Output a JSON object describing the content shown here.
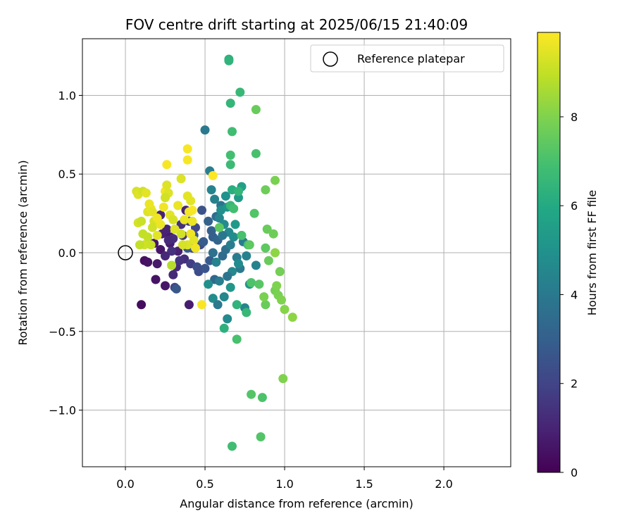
{
  "chart_data": {
    "type": "scatter",
    "title": "FOV centre drift starting at 2025/06/15 21:40:09",
    "xlabel": "Angular distance from reference (arcmin)",
    "ylabel": "Rotation from reference (arcmin)",
    "xlim": [
      -0.27,
      2.42
    ],
    "ylim": [
      -1.36,
      1.36
    ],
    "x_ticks": [
      0.0,
      0.5,
      1.0,
      1.5,
      2.0
    ],
    "x_tick_labels": [
      "0.0",
      "0.5",
      "1.0",
      "1.5",
      "2.0"
    ],
    "y_ticks": [
      -1.0,
      -0.5,
      0.0,
      0.5,
      1.0
    ],
    "y_tick_labels": [
      "−1.0",
      "−0.5",
      "0.0",
      "0.5",
      "1.0"
    ],
    "grid": true,
    "legend": {
      "position": "top-right",
      "entries": [
        {
          "label": "Reference platepar",
          "marker": "open-circle"
        }
      ]
    },
    "reference_point": {
      "x": 0.0,
      "y": 0.0
    },
    "colorbar": {
      "label": "Hours from first FF file",
      "colormap": "viridis",
      "range": [
        0,
        9.9
      ],
      "ticks": [
        0,
        2,
        4,
        6,
        8
      ],
      "tick_labels": [
        "0",
        "2",
        "4",
        "6",
        "8"
      ]
    },
    "series": [
      {
        "points": [
          [
            0.1,
            -0.33,
            0.3
          ],
          [
            0.12,
            -0.05,
            0.4
          ],
          [
            0.14,
            -0.06,
            0.5
          ],
          [
            0.19,
            -0.17,
            0.5
          ],
          [
            0.25,
            -0.21,
            0.6
          ],
          [
            0.22,
            0.02,
            0.6
          ],
          [
            0.28,
            0.06,
            0.8
          ],
          [
            0.3,
            -0.14,
            1.1
          ],
          [
            0.28,
            0.1,
            0.7
          ],
          [
            0.33,
            0.01,
            0.9
          ],
          [
            0.4,
            -0.33,
            0.8
          ],
          [
            0.23,
            0.12,
            0.9
          ],
          [
            0.26,
            0.15,
            1.0
          ],
          [
            0.32,
            -0.09,
            1.2
          ],
          [
            0.37,
            -0.04,
            1.3
          ],
          [
            0.2,
            -0.07,
            0.7
          ],
          [
            0.18,
            0.06,
            0.6
          ],
          [
            0.22,
            0.24,
            0.9
          ],
          [
            0.38,
            0.27,
            1.0
          ],
          [
            0.31,
            -0.22,
            2.0
          ],
          [
            0.34,
            -0.05,
            1.5
          ],
          [
            0.3,
            0.09,
            1.3
          ],
          [
            0.36,
            0.11,
            1.6
          ],
          [
            0.41,
            -0.07,
            1.8
          ],
          [
            0.42,
            0.03,
            1.9
          ],
          [
            0.29,
            0.01,
            1.4
          ],
          [
            0.46,
            -0.12,
            2.3
          ],
          [
            0.25,
            -0.02,
            1.1
          ],
          [
            0.27,
            0.08,
            1.2
          ],
          [
            0.44,
            0.16,
            2.1
          ],
          [
            0.4,
            0.2,
            1.7
          ],
          [
            0.35,
            0.18,
            1.4
          ],
          [
            0.48,
            0.27,
            2.5
          ],
          [
            0.47,
            0.05,
            2.2
          ],
          [
            0.5,
            -0.1,
            2.6
          ],
          [
            0.53,
            -0.05,
            2.8
          ],
          [
            0.45,
            -0.09,
            2.4
          ],
          [
            0.32,
            -0.23,
            2.7
          ],
          [
            0.55,
            0.1,
            3.0
          ],
          [
            0.58,
            0.08,
            3.2
          ],
          [
            0.52,
            0.2,
            3.1
          ],
          [
            0.56,
            -0.17,
            3.3
          ],
          [
            0.61,
            -0.02,
            3.4
          ],
          [
            0.63,
            0.02,
            3.6
          ],
          [
            0.6,
            0.3,
            3.8
          ],
          [
            0.54,
            0.14,
            3.0
          ],
          [
            0.57,
            0.23,
            3.5
          ],
          [
            0.39,
            0.03,
            2.9
          ],
          [
            0.43,
            0.11,
            2.7
          ],
          [
            0.49,
            0.07,
            2.9
          ],
          [
            0.5,
            0.78,
            4.0
          ],
          [
            0.53,
            0.52,
            4.2
          ],
          [
            0.54,
            0.4,
            4.4
          ],
          [
            0.56,
            0.34,
            4.3
          ],
          [
            0.59,
            0.22,
            4.5
          ],
          [
            0.62,
            0.18,
            4.7
          ],
          [
            0.65,
            0.13,
            4.6
          ],
          [
            0.68,
            0.1,
            4.8
          ],
          [
            0.6,
            0.27,
            4.9
          ],
          [
            0.63,
            0.36,
            5.0
          ],
          [
            0.64,
            0.29,
            5.1
          ],
          [
            0.66,
            0.05,
            4.2
          ],
          [
            0.7,
            -0.03,
            4.1
          ],
          [
            0.72,
            -0.1,
            4.0
          ],
          [
            0.76,
            -0.02,
            4.3
          ],
          [
            0.74,
            0.07,
            4.1
          ],
          [
            0.82,
            -0.08,
            4.4
          ],
          [
            0.75,
            -0.35,
            4.5
          ],
          [
            0.64,
            -0.42,
            4.7
          ],
          [
            0.62,
            -0.28,
            4.6
          ],
          [
            0.59,
            -0.18,
            4.2
          ],
          [
            0.57,
            -0.06,
            4.4
          ],
          [
            0.55,
            -0.29,
            4.8
          ],
          [
            0.52,
            -0.2,
            4.9
          ],
          [
            0.58,
            -0.33,
            4.0
          ],
          [
            0.66,
            -0.22,
            5.2
          ],
          [
            0.69,
            0.18,
            5.3
          ],
          [
            0.71,
            0.35,
            5.4
          ],
          [
            0.73,
            0.42,
            5.6
          ],
          [
            0.78,
            -0.2,
            5.1
          ],
          [
            0.55,
            0.0,
            3.7
          ],
          [
            0.61,
            0.11,
            3.9
          ],
          [
            0.67,
            -0.12,
            4.6
          ],
          [
            0.71,
            -0.07,
            4.7
          ],
          [
            0.64,
            -0.15,
            3.8
          ],
          [
            0.65,
            1.23,
            6.3
          ],
          [
            0.65,
            1.22,
            6.4
          ],
          [
            0.66,
            0.95,
            6.5
          ],
          [
            0.72,
            1.02,
            6.6
          ],
          [
            0.67,
            0.77,
            6.8
          ],
          [
            0.82,
            0.63,
            7.0
          ],
          [
            0.66,
            0.62,
            6.9
          ],
          [
            0.66,
            0.56,
            6.7
          ],
          [
            0.67,
            0.4,
            6.2
          ],
          [
            0.71,
            0.39,
            6.5
          ],
          [
            0.66,
            0.3,
            6.6
          ],
          [
            0.68,
            0.28,
            6.9
          ],
          [
            0.73,
            0.11,
            7.0
          ],
          [
            0.77,
            0.05,
            6.8
          ],
          [
            0.7,
            -0.33,
            6.4
          ],
          [
            0.76,
            -0.38,
            6.6
          ],
          [
            0.7,
            -0.55,
            7.0
          ],
          [
            0.62,
            -0.48,
            6.3
          ],
          [
            0.79,
            -0.19,
            7.1
          ],
          [
            0.81,
            0.25,
            7.2
          ],
          [
            0.84,
            -0.2,
            7.3
          ],
          [
            0.78,
            0.05,
            7.4
          ],
          [
            0.88,
            -0.33,
            7.6
          ],
          [
            0.88,
            0.03,
            7.4
          ],
          [
            0.9,
            -0.05,
            7.6
          ],
          [
            0.89,
            0.15,
            7.6
          ],
          [
            0.93,
            0.12,
            7.7
          ],
          [
            0.97,
            -0.12,
            7.8
          ],
          [
            0.94,
            -0.24,
            7.8
          ],
          [
            0.96,
            -0.27,
            7.9
          ],
          [
            0.98,
            -0.3,
            8.0
          ],
          [
            1.0,
            -0.36,
            8.1
          ],
          [
            1.05,
            -0.41,
            8.2
          ],
          [
            0.86,
            -0.92,
            7.1
          ],
          [
            0.79,
            -0.9,
            7.2
          ],
          [
            0.67,
            -1.23,
            6.8
          ],
          [
            0.85,
            -1.17,
            7.2
          ],
          [
            0.99,
            -0.8,
            8.0
          ],
          [
            0.88,
            0.4,
            7.7
          ],
          [
            0.94,
            0.46,
            7.9
          ],
          [
            0.82,
            0.91,
            7.6
          ],
          [
            0.59,
            0.16,
            7.4
          ],
          [
            0.87,
            -0.28,
            7.9
          ],
          [
            0.94,
            0.0,
            8.2
          ],
          [
            0.95,
            -0.21,
            8.0
          ],
          [
            0.07,
            0.39,
            9.3
          ],
          [
            0.08,
            0.37,
            9.4
          ],
          [
            0.11,
            0.39,
            9.2
          ],
          [
            0.13,
            0.38,
            9.5
          ],
          [
            0.08,
            0.19,
            9.3
          ],
          [
            0.1,
            0.2,
            9.1
          ],
          [
            0.11,
            0.12,
            9.0
          ],
          [
            0.12,
            0.05,
            9.2
          ],
          [
            0.14,
            0.26,
            9.4
          ],
          [
            0.15,
            0.31,
            9.6
          ],
          [
            0.16,
            0.28,
            9.6
          ],
          [
            0.17,
            0.26,
            9.5
          ],
          [
            0.18,
            0.2,
            9.3
          ],
          [
            0.16,
            0.05,
            9.1
          ],
          [
            0.17,
            0.16,
            9.2
          ],
          [
            0.2,
            0.11,
            9.5
          ],
          [
            0.22,
            0.18,
            9.6
          ],
          [
            0.24,
            0.29,
            9.7
          ],
          [
            0.25,
            0.39,
            9.7
          ],
          [
            0.26,
            0.43,
            9.4
          ],
          [
            0.27,
            0.38,
            9.4
          ],
          [
            0.28,
            0.24,
            9.5
          ],
          [
            0.3,
            0.21,
            9.3
          ],
          [
            0.26,
            0.56,
            9.8
          ],
          [
            0.35,
            0.47,
            9.4
          ],
          [
            0.39,
            0.66,
            9.8
          ],
          [
            0.39,
            0.59,
            9.8
          ],
          [
            0.37,
            0.21,
            9.6
          ],
          [
            0.39,
            0.36,
            9.5
          ],
          [
            0.41,
            0.33,
            9.5
          ],
          [
            0.4,
            0.26,
            9.7
          ],
          [
            0.42,
            0.2,
            9.6
          ],
          [
            0.41,
            0.12,
            9.7
          ],
          [
            0.43,
            0.08,
            9.5
          ],
          [
            0.39,
            0.05,
            9.4
          ],
          [
            0.44,
            0.03,
            9.7
          ],
          [
            0.35,
            0.12,
            9.2
          ],
          [
            0.33,
            0.3,
            9.6
          ],
          [
            0.31,
            0.15,
            9.4
          ],
          [
            0.29,
            -0.08,
            8.8
          ],
          [
            0.48,
            -0.33,
            9.8
          ],
          [
            0.55,
            0.49,
            9.9
          ],
          [
            0.09,
            0.05,
            9.0
          ],
          [
            0.25,
            0.35,
            9.2
          ],
          [
            0.2,
            0.22,
            9.7
          ],
          [
            0.14,
            0.1,
            9.0
          ],
          [
            0.36,
            0.05,
            9.3
          ],
          [
            0.42,
            0.27,
            9.8
          ]
        ]
      }
    ]
  }
}
